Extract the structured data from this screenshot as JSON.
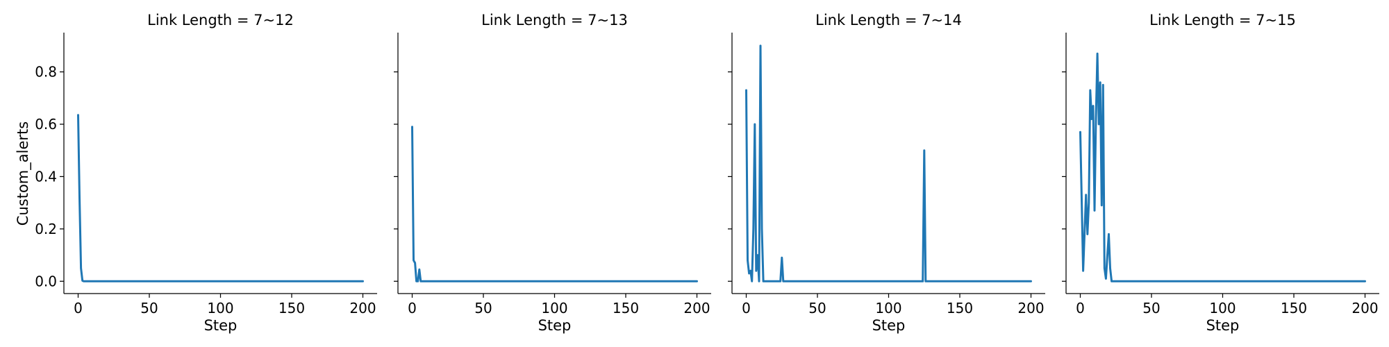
{
  "colors": {
    "series": "#1f77b4",
    "axes": "#000000",
    "background": "#ffffff"
  },
  "chart_data": [
    {
      "type": "line",
      "title": "Link Length = 7~12",
      "xlabel": "Step",
      "ylabel": "Custom_alerts",
      "xlim": [
        -10,
        210
      ],
      "ylim": [
        -0.047,
        0.95
      ],
      "xticks": [
        0,
        50,
        100,
        150,
        200
      ],
      "yticks": [
        0.0,
        0.2,
        0.4,
        0.6,
        0.8
      ],
      "grid": false,
      "series": [
        {
          "x": [
            0,
            1,
            2,
            3,
            4,
            200
          ],
          "y": [
            0.635,
            0.32,
            0.05,
            0.002,
            0.0,
            0.0
          ]
        }
      ]
    },
    {
      "type": "line",
      "title": "Link Length = 7~13",
      "xlabel": "Step",
      "ylabel": "",
      "xlim": [
        -10,
        210
      ],
      "ylim": [
        -0.047,
        0.95
      ],
      "xticks": [
        0,
        50,
        100,
        150,
        200
      ],
      "yticks": [
        0.0,
        0.2,
        0.4,
        0.6,
        0.8
      ],
      "grid": false,
      "series": [
        {
          "x": [
            0,
            1,
            2,
            3,
            4,
            5,
            6,
            7,
            200
          ],
          "y": [
            0.59,
            0.08,
            0.07,
            0.0,
            0.0,
            0.045,
            0.0,
            0.0,
            0.0
          ]
        }
      ]
    },
    {
      "type": "line",
      "title": "Link Length = 7~14",
      "xlabel": "Step",
      "ylabel": "",
      "xlim": [
        -10,
        210
      ],
      "ylim": [
        -0.047,
        0.95
      ],
      "xticks": [
        0,
        50,
        100,
        150,
        200
      ],
      "yticks": [
        0.0,
        0.2,
        0.4,
        0.6,
        0.8
      ],
      "grid": false,
      "series": [
        {
          "x": [
            0,
            1,
            2,
            3,
            4,
            5,
            6,
            7,
            8,
            9,
            10,
            11,
            12,
            13,
            24,
            25,
            26,
            124,
            125,
            126,
            200
          ],
          "y": [
            0.73,
            0.08,
            0.03,
            0.04,
            0.0,
            0.2,
            0.6,
            0.04,
            0.1,
            0.0,
            0.9,
            0.2,
            0.0,
            0.0,
            0.0,
            0.09,
            0.0,
            0.0,
            0.5,
            0.0,
            0.0
          ]
        }
      ]
    },
    {
      "type": "line",
      "title": "Link Length = 7~15",
      "xlabel": "Step",
      "ylabel": "",
      "xlim": [
        -10,
        210
      ],
      "ylim": [
        -0.047,
        0.95
      ],
      "xticks": [
        0,
        50,
        100,
        150,
        200
      ],
      "yticks": [
        0.0,
        0.2,
        0.4,
        0.6,
        0.8
      ],
      "grid": false,
      "series": [
        {
          "x": [
            0,
            2,
            4,
            5,
            6,
            7,
            8,
            9,
            10,
            11,
            12,
            13,
            14,
            15,
            16,
            17,
            18,
            19,
            20,
            21,
            22,
            23,
            24,
            200
          ],
          "y": [
            0.57,
            0.04,
            0.33,
            0.18,
            0.3,
            0.73,
            0.62,
            0.67,
            0.27,
            0.62,
            0.87,
            0.6,
            0.76,
            0.29,
            0.75,
            0.05,
            0.01,
            0.1,
            0.18,
            0.05,
            0.0,
            0.0,
            0.0,
            0.0
          ]
        }
      ]
    }
  ]
}
